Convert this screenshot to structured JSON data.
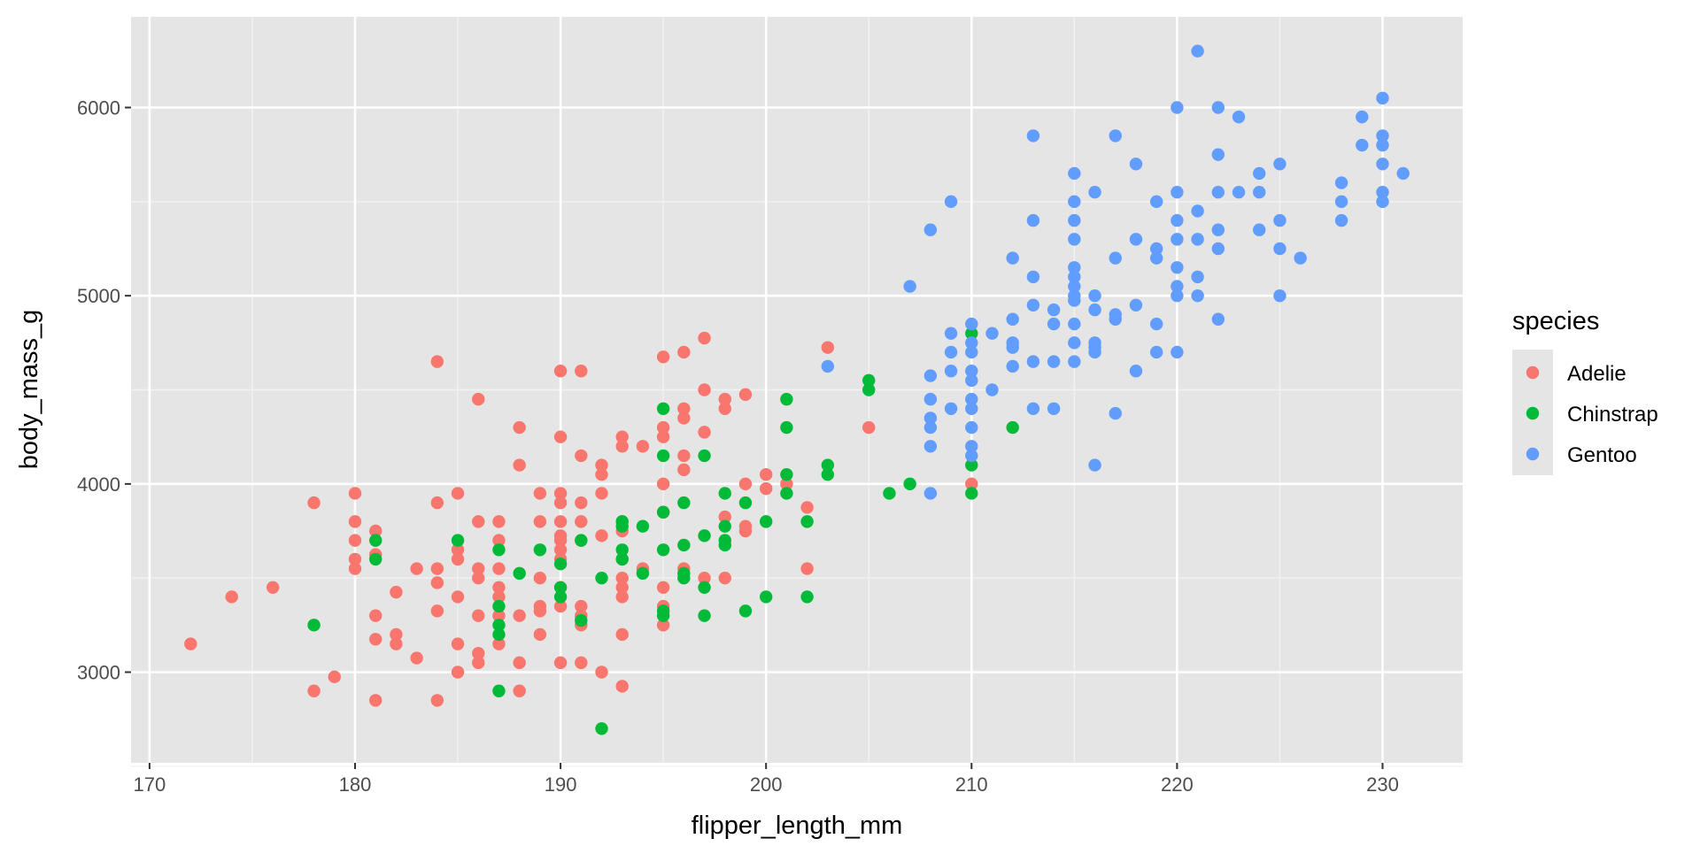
{
  "chart_data": {
    "type": "scatter",
    "title": "",
    "xlabel": "flipper_length_mm",
    "ylabel": "body_mass_g",
    "xlim": [
      169.1,
      233.9
    ],
    "ylim": [
      2518,
      6482
    ],
    "x_ticks": [
      170,
      180,
      190,
      200,
      210,
      220,
      230
    ],
    "x_tick_labels": [
      "170",
      "180",
      "190",
      "200",
      "210",
      "220",
      "230"
    ],
    "y_ticks": [
      3000,
      4000,
      5000,
      6000
    ],
    "y_tick_labels": [
      "3000",
      "4000",
      "5000",
      "6000"
    ],
    "grid": true,
    "background": "#e5e5e5",
    "legend": {
      "title": "species",
      "position": "right",
      "entries": [
        "Adelie",
        "Chinstrap",
        "Gentoo"
      ]
    },
    "series": [
      {
        "name": "Adelie",
        "color": "#F8766D",
        "points": [
          [
            172,
            3150
          ],
          [
            174,
            3400
          ],
          [
            176,
            3450
          ],
          [
            178,
            3900
          ],
          [
            178,
            2900
          ],
          [
            179,
            2975
          ],
          [
            180,
            3950
          ],
          [
            180,
            3800
          ],
          [
            180,
            3700
          ],
          [
            180,
            3600
          ],
          [
            180,
            3550
          ],
          [
            181,
            3750
          ],
          [
            181,
            3625
          ],
          [
            181,
            3300
          ],
          [
            181,
            3175
          ],
          [
            181,
            2850
          ],
          [
            182,
            3425
          ],
          [
            182,
            3200
          ],
          [
            182,
            3150
          ],
          [
            183,
            3550
          ],
          [
            183,
            3075
          ],
          [
            184,
            4650
          ],
          [
            184,
            3900
          ],
          [
            184,
            3550
          ],
          [
            184,
            3475
          ],
          [
            184,
            3325
          ],
          [
            184,
            2850
          ],
          [
            185,
            3950
          ],
          [
            185,
            3650
          ],
          [
            185,
            3600
          ],
          [
            185,
            3400
          ],
          [
            185,
            3150
          ],
          [
            185,
            3000
          ],
          [
            186,
            4450
          ],
          [
            186,
            3800
          ],
          [
            186,
            3550
          ],
          [
            186,
            3500
          ],
          [
            186,
            3300
          ],
          [
            186,
            3100
          ],
          [
            186,
            3050
          ],
          [
            187,
            3800
          ],
          [
            187,
            3700
          ],
          [
            187,
            3550
          ],
          [
            187,
            3450
          ],
          [
            187,
            3400
          ],
          [
            187,
            3300
          ],
          [
            187,
            3150
          ],
          [
            188,
            4300
          ],
          [
            188,
            4100
          ],
          [
            188,
            3300
          ],
          [
            188,
            3050
          ],
          [
            188,
            2900
          ],
          [
            189,
            3950
          ],
          [
            189,
            3800
          ],
          [
            189,
            3500
          ],
          [
            189,
            3350
          ],
          [
            189,
            3325
          ],
          [
            189,
            3200
          ],
          [
            190,
            4600
          ],
          [
            190,
            4250
          ],
          [
            190,
            3950
          ],
          [
            190,
            3900
          ],
          [
            190,
            3800
          ],
          [
            190,
            3725
          ],
          [
            190,
            3700
          ],
          [
            190,
            3650
          ],
          [
            190,
            3600
          ],
          [
            190,
            3450
          ],
          [
            190,
            3350
          ],
          [
            190,
            3050
          ],
          [
            191,
            4600
          ],
          [
            191,
            4150
          ],
          [
            191,
            3900
          ],
          [
            191,
            3800
          ],
          [
            191,
            3700
          ],
          [
            191,
            3350
          ],
          [
            191,
            3300
          ],
          [
            191,
            3250
          ],
          [
            191,
            3050
          ],
          [
            192,
            4100
          ],
          [
            192,
            4050
          ],
          [
            192,
            3950
          ],
          [
            192,
            3725
          ],
          [
            192,
            3000
          ],
          [
            193,
            4250
          ],
          [
            193,
            4200
          ],
          [
            193,
            3800
          ],
          [
            193,
            3750
          ],
          [
            193,
            3600
          ],
          [
            193,
            3500
          ],
          [
            193,
            3450
          ],
          [
            193,
            3400
          ],
          [
            193,
            3200
          ],
          [
            193,
            2925
          ],
          [
            194,
            4200
          ],
          [
            194,
            3550
          ],
          [
            195,
            4675
          ],
          [
            195,
            4300
          ],
          [
            195,
            4250
          ],
          [
            195,
            4000
          ],
          [
            195,
            3850
          ],
          [
            195,
            3450
          ],
          [
            195,
            3350
          ],
          [
            195,
            3250
          ],
          [
            196,
            4700
          ],
          [
            196,
            4400
          ],
          [
            196,
            4350
          ],
          [
            196,
            4150
          ],
          [
            196,
            4075
          ],
          [
            196,
            3550
          ],
          [
            197,
            4775
          ],
          [
            197,
            4500
          ],
          [
            197,
            4275
          ],
          [
            197,
            3500
          ],
          [
            198,
            4450
          ],
          [
            198,
            4400
          ],
          [
            198,
            3825
          ],
          [
            198,
            3500
          ],
          [
            199,
            4475
          ],
          [
            199,
            4000
          ],
          [
            199,
            3775
          ],
          [
            199,
            3750
          ],
          [
            200,
            4050
          ],
          [
            200,
            3975
          ],
          [
            201,
            4000
          ],
          [
            202,
            3875
          ],
          [
            202,
            3550
          ],
          [
            203,
            4725
          ],
          [
            205,
            4300
          ],
          [
            210,
            4000
          ]
        ]
      },
      {
        "name": "Chinstrap",
        "color": "#00BA38",
        "points": [
          [
            178,
            3250
          ],
          [
            181,
            3700
          ],
          [
            181,
            3600
          ],
          [
            185,
            3700
          ],
          [
            187,
            3650
          ],
          [
            187,
            3350
          ],
          [
            187,
            3250
          ],
          [
            187,
            3200
          ],
          [
            187,
            2900
          ],
          [
            188,
            3525
          ],
          [
            189,
            3650
          ],
          [
            190,
            3575
          ],
          [
            190,
            3450
          ],
          [
            190,
            3400
          ],
          [
            191,
            3700
          ],
          [
            191,
            3275
          ],
          [
            192,
            3500
          ],
          [
            192,
            2700
          ],
          [
            193,
            3800
          ],
          [
            193,
            3775
          ],
          [
            193,
            3650
          ],
          [
            193,
            3600
          ],
          [
            194,
            3775
          ],
          [
            194,
            3525
          ],
          [
            195,
            4400
          ],
          [
            195,
            4150
          ],
          [
            195,
            3850
          ],
          [
            195,
            3650
          ],
          [
            195,
            3325
          ],
          [
            195,
            3300
          ],
          [
            196,
            3900
          ],
          [
            196,
            3675
          ],
          [
            196,
            3525
          ],
          [
            196,
            3500
          ],
          [
            197,
            4150
          ],
          [
            197,
            3725
          ],
          [
            197,
            3450
          ],
          [
            197,
            3300
          ],
          [
            198,
            3950
          ],
          [
            198,
            3775
          ],
          [
            198,
            3700
          ],
          [
            198,
            3675
          ],
          [
            199,
            3900
          ],
          [
            199,
            3325
          ],
          [
            200,
            3800
          ],
          [
            200,
            3400
          ],
          [
            201,
            4450
          ],
          [
            201,
            4300
          ],
          [
            201,
            4050
          ],
          [
            201,
            3950
          ],
          [
            202,
            3800
          ],
          [
            202,
            3400
          ],
          [
            203,
            4100
          ],
          [
            203,
            4050
          ],
          [
            205,
            4550
          ],
          [
            205,
            4500
          ],
          [
            206,
            3950
          ],
          [
            207,
            4000
          ],
          [
            210,
            4800
          ],
          [
            210,
            4100
          ],
          [
            210,
            3950
          ],
          [
            212,
            4300
          ]
        ]
      },
      {
        "name": "Gentoo",
        "color": "#619CFF",
        "points": [
          [
            203,
            4625
          ],
          [
            207,
            5050
          ],
          [
            208,
            5350
          ],
          [
            208,
            4575
          ],
          [
            208,
            4450
          ],
          [
            208,
            4350
          ],
          [
            208,
            4300
          ],
          [
            208,
            4200
          ],
          [
            208,
            3950
          ],
          [
            209,
            5500
          ],
          [
            209,
            4800
          ],
          [
            209,
            4700
          ],
          [
            209,
            4600
          ],
          [
            209,
            4400
          ],
          [
            210,
            4850
          ],
          [
            210,
            4750
          ],
          [
            210,
            4700
          ],
          [
            210,
            4600
          ],
          [
            210,
            4550
          ],
          [
            210,
            4450
          ],
          [
            210,
            4400
          ],
          [
            210,
            4300
          ],
          [
            210,
            4200
          ],
          [
            210,
            4150
          ],
          [
            211,
            4800
          ],
          [
            211,
            4500
          ],
          [
            212,
            5200
          ],
          [
            212,
            4875
          ],
          [
            212,
            4750
          ],
          [
            212,
            4725
          ],
          [
            212,
            4625
          ],
          [
            213,
            5850
          ],
          [
            213,
            5400
          ],
          [
            213,
            5100
          ],
          [
            213,
            4950
          ],
          [
            213,
            4650
          ],
          [
            213,
            4400
          ],
          [
            214,
            4925
          ],
          [
            214,
            4850
          ],
          [
            214,
            4650
          ],
          [
            214,
            4400
          ],
          [
            215,
            5650
          ],
          [
            215,
            5500
          ],
          [
            215,
            5400
          ],
          [
            215,
            5300
          ],
          [
            215,
            5150
          ],
          [
            215,
            5100
          ],
          [
            215,
            5050
          ],
          [
            215,
            5000
          ],
          [
            215,
            4975
          ],
          [
            215,
            4850
          ],
          [
            215,
            4750
          ],
          [
            215,
            4650
          ],
          [
            216,
            5550
          ],
          [
            216,
            5000
          ],
          [
            216,
            4925
          ],
          [
            216,
            4750
          ],
          [
            216,
            4725
          ],
          [
            216,
            4700
          ],
          [
            216,
            4100
          ],
          [
            217,
            5850
          ],
          [
            217,
            5200
          ],
          [
            217,
            4900
          ],
          [
            217,
            4875
          ],
          [
            217,
            4375
          ],
          [
            218,
            5700
          ],
          [
            218,
            5300
          ],
          [
            218,
            4950
          ],
          [
            218,
            4600
          ],
          [
            219,
            5500
          ],
          [
            219,
            5250
          ],
          [
            219,
            5200
          ],
          [
            219,
            4850
          ],
          [
            219,
            4700
          ],
          [
            220,
            6000
          ],
          [
            220,
            5550
          ],
          [
            220,
            5400
          ],
          [
            220,
            5300
          ],
          [
            220,
            5150
          ],
          [
            220,
            5050
          ],
          [
            220,
            5000
          ],
          [
            220,
            4700
          ],
          [
            221,
            6300
          ],
          [
            221,
            5450
          ],
          [
            221,
            5300
          ],
          [
            221,
            5100
          ],
          [
            221,
            5000
          ],
          [
            222,
            6000
          ],
          [
            222,
            5750
          ],
          [
            222,
            5550
          ],
          [
            222,
            5350
          ],
          [
            222,
            5250
          ],
          [
            222,
            4875
          ],
          [
            223,
            5950
          ],
          [
            223,
            5550
          ],
          [
            224,
            5650
          ],
          [
            224,
            5550
          ],
          [
            224,
            5350
          ],
          [
            225,
            5700
          ],
          [
            225,
            5400
          ],
          [
            225,
            5250
          ],
          [
            225,
            5000
          ],
          [
            226,
            5200
          ],
          [
            228,
            5600
          ],
          [
            228,
            5500
          ],
          [
            228,
            5400
          ],
          [
            229,
            5950
          ],
          [
            229,
            5800
          ],
          [
            230,
            6050
          ],
          [
            230,
            5850
          ],
          [
            230,
            5800
          ],
          [
            230,
            5700
          ],
          [
            230,
            5550
          ],
          [
            230,
            5500
          ],
          [
            231,
            5650
          ]
        ]
      }
    ]
  }
}
